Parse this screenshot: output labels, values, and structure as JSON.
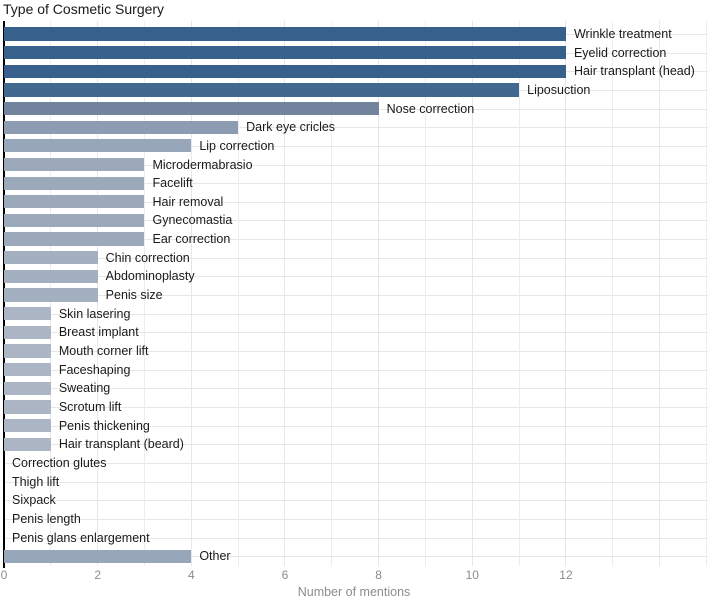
{
  "chart_data": {
    "type": "bar",
    "orientation": "horizontal",
    "title": "Type of Cosmetic Surgery",
    "xlabel": "Number of mentions",
    "ylabel": "",
    "xlim": [
      0,
      15
    ],
    "xticks": [
      0,
      2,
      4,
      6,
      8,
      10,
      12
    ],
    "grid": true,
    "legend": false,
    "bar_label_position": "right-of-bar",
    "categories": [
      "Wrinkle treatment",
      "Eyelid correction",
      "Hair transplant (head)",
      "Liposuction",
      "Nose correction",
      "Dark eye cricles",
      "Lip correction",
      "Microdermabrasio",
      "Facelift",
      "Hair removal",
      "Gynecomastia",
      "Ear correction",
      "Chin correction",
      "Abdominoplasty",
      "Penis size",
      "Skin lasering",
      "Breast implant",
      "Mouth corner lift",
      "Faceshaping",
      "Sweating",
      "Scrotum lift",
      "Penis thickening",
      "Hair transplant (beard)",
      "Correction glutes",
      "Thigh lift",
      "Sixpack",
      "Penis length",
      "Penis glans enlargement",
      "Other"
    ],
    "values": [
      12,
      12,
      12,
      11,
      8,
      5,
      4,
      3,
      3,
      3,
      3,
      3,
      2,
      2,
      2,
      1,
      1,
      1,
      1,
      1,
      1,
      1,
      1,
      0,
      0,
      0,
      0,
      0,
      4
    ],
    "bar_colors": [
      "#37618C",
      "#37618C",
      "#37618C",
      "#41688F",
      "#72839E",
      "#8D9CB2",
      "#98A6BA",
      "#9BA9BB",
      "#9BA9BB",
      "#9BA9BB",
      "#9BA9BB",
      "#9BA9BB",
      "#A4AFBF",
      "#A4AFBF",
      "#A4AFBF",
      "#ABB5C3",
      "#ABB5C3",
      "#ABB5C3",
      "#ABB5C3",
      "#ABB5C3",
      "#ABB5C3",
      "#ABB5C3",
      "#ABB5C3",
      null,
      null,
      null,
      null,
      null,
      "#98A6BA"
    ],
    "colors": {
      "bar_high": "#37618C",
      "bar_low": "#ABB5C3",
      "axis_line": "#000000",
      "gridline": "#E7E7E7",
      "tick_label": "#8C8C8C",
      "bar_label": "#1A1A1A",
      "background": "#FFFFFF"
    }
  }
}
